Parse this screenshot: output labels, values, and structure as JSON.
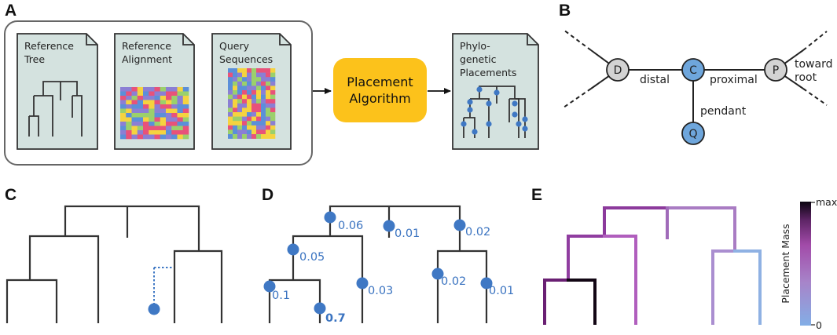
{
  "panels": {
    "a": "A",
    "b": "B",
    "c": "C",
    "d": "D",
    "e": "E"
  },
  "panel_a": {
    "reference_tree_label": [
      "Reference",
      "Tree"
    ],
    "reference_alignment_label": [
      "Reference",
      "Alignment"
    ],
    "query_sequences_label": [
      "Query",
      "Sequences"
    ],
    "algorithm_label": [
      "Placement",
      "Algorithm"
    ],
    "output_label": [
      "Phylo-",
      "genetic",
      "Placements"
    ]
  },
  "panel_b": {
    "nodes": {
      "d": "D",
      "c": "C",
      "p": "P",
      "q": "Q"
    },
    "edge_labels": {
      "distal": "distal",
      "proximal": "proximal",
      "pendant": "pendant"
    },
    "toward_root": [
      "toward",
      "root"
    ]
  },
  "panel_d": {
    "lwr": [
      "0.06",
      "0.01",
      "0.02",
      "0.05",
      "0.1",
      "0.7",
      "0.03",
      "0.02",
      "0.01"
    ]
  },
  "panel_e": {
    "colorbar_title": "Placement Mass",
    "colorbar_max": "max",
    "colorbar_min": "0"
  },
  "colors": {
    "doc_fill": "#d4e2df",
    "algorithm_fill": "#fcc21b",
    "node_blue": "#6ea6dc",
    "node_gray": "#d3d3d3",
    "placement_blue": "#3f78c4"
  }
}
